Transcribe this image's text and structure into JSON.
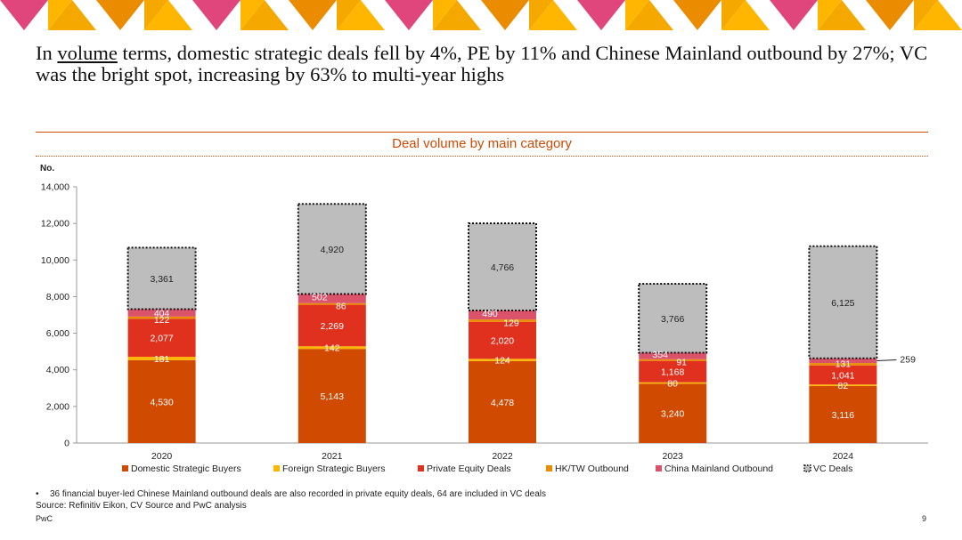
{
  "headline": {
    "part1": "In ",
    "underlined": "volume",
    "part2": " terms, domestic strategic deals fell by 4%, PE by 11% and Chinese Mainland outbound by 27%; VC was the bright spot, increasing by 63% to multi-year highs"
  },
  "colors": {
    "banner": [
      "#e0457b",
      "#f5a800",
      "#eb8c00",
      "#ffb600"
    ],
    "accent": "#d04a02"
  },
  "chart_data": {
    "type": "bar",
    "stacked": true,
    "title": "Deal volume by main category",
    "ylabel": "No.",
    "ylim": [
      0,
      14000
    ],
    "yticks": [
      0,
      2000,
      4000,
      6000,
      8000,
      10000,
      12000,
      14000
    ],
    "categories": [
      "2020",
      "2021",
      "2022",
      "2023",
      "2024"
    ],
    "series": [
      {
        "name": "Domestic Strategic Buyers",
        "color": "#d04a02",
        "values": [
          4530,
          5143,
          4478,
          3240,
          3116
        ]
      },
      {
        "name": "Foreign Strategic Buyers",
        "color": "#ffb600",
        "values": [
          181,
          142,
          124,
          80,
          82
        ]
      },
      {
        "name": "Private Equity Deals",
        "color": "#e0301e",
        "values": [
          2077,
          2269,
          2020,
          1168,
          1041
        ]
      },
      {
        "name": "HK/TW Outbound",
        "color": "#eb8c00",
        "values": [
          122,
          86,
          129,
          91,
          131
        ]
      },
      {
        "name": "China Mainland Outbound",
        "color": "#db536a",
        "values": [
          404,
          502,
          490,
          354,
          259
        ]
      },
      {
        "name": "VC Deals",
        "color": "#bdbdbd",
        "dotted": true,
        "values": [
          3361,
          4920,
          4766,
          3766,
          6125
        ]
      }
    ],
    "data_labels": [
      [
        "4,530",
        "181",
        "2,077",
        "122",
        "404",
        "3,361"
      ],
      [
        "5,143",
        "142",
        "2,269",
        "86",
        "502",
        "4,920"
      ],
      [
        "4,478",
        "124",
        "2,020",
        "129",
        "490",
        "4,766"
      ],
      [
        "3,240",
        "80",
        "1,168",
        "91",
        "354",
        "3,766"
      ],
      [
        "3,116",
        "82",
        "1,041",
        "131",
        "259",
        "6,125"
      ]
    ],
    "legend_position": "bottom"
  },
  "footnote": "36 financial buyer-led Chinese Mainland outbound deals are also recorded in private equity deals, 64 are included in VC deals",
  "footnote_bullet": "•",
  "source": "Source: Refinitiv Eikon, CV Source and PwC analysis",
  "brand": "PwC",
  "page_number": "9"
}
